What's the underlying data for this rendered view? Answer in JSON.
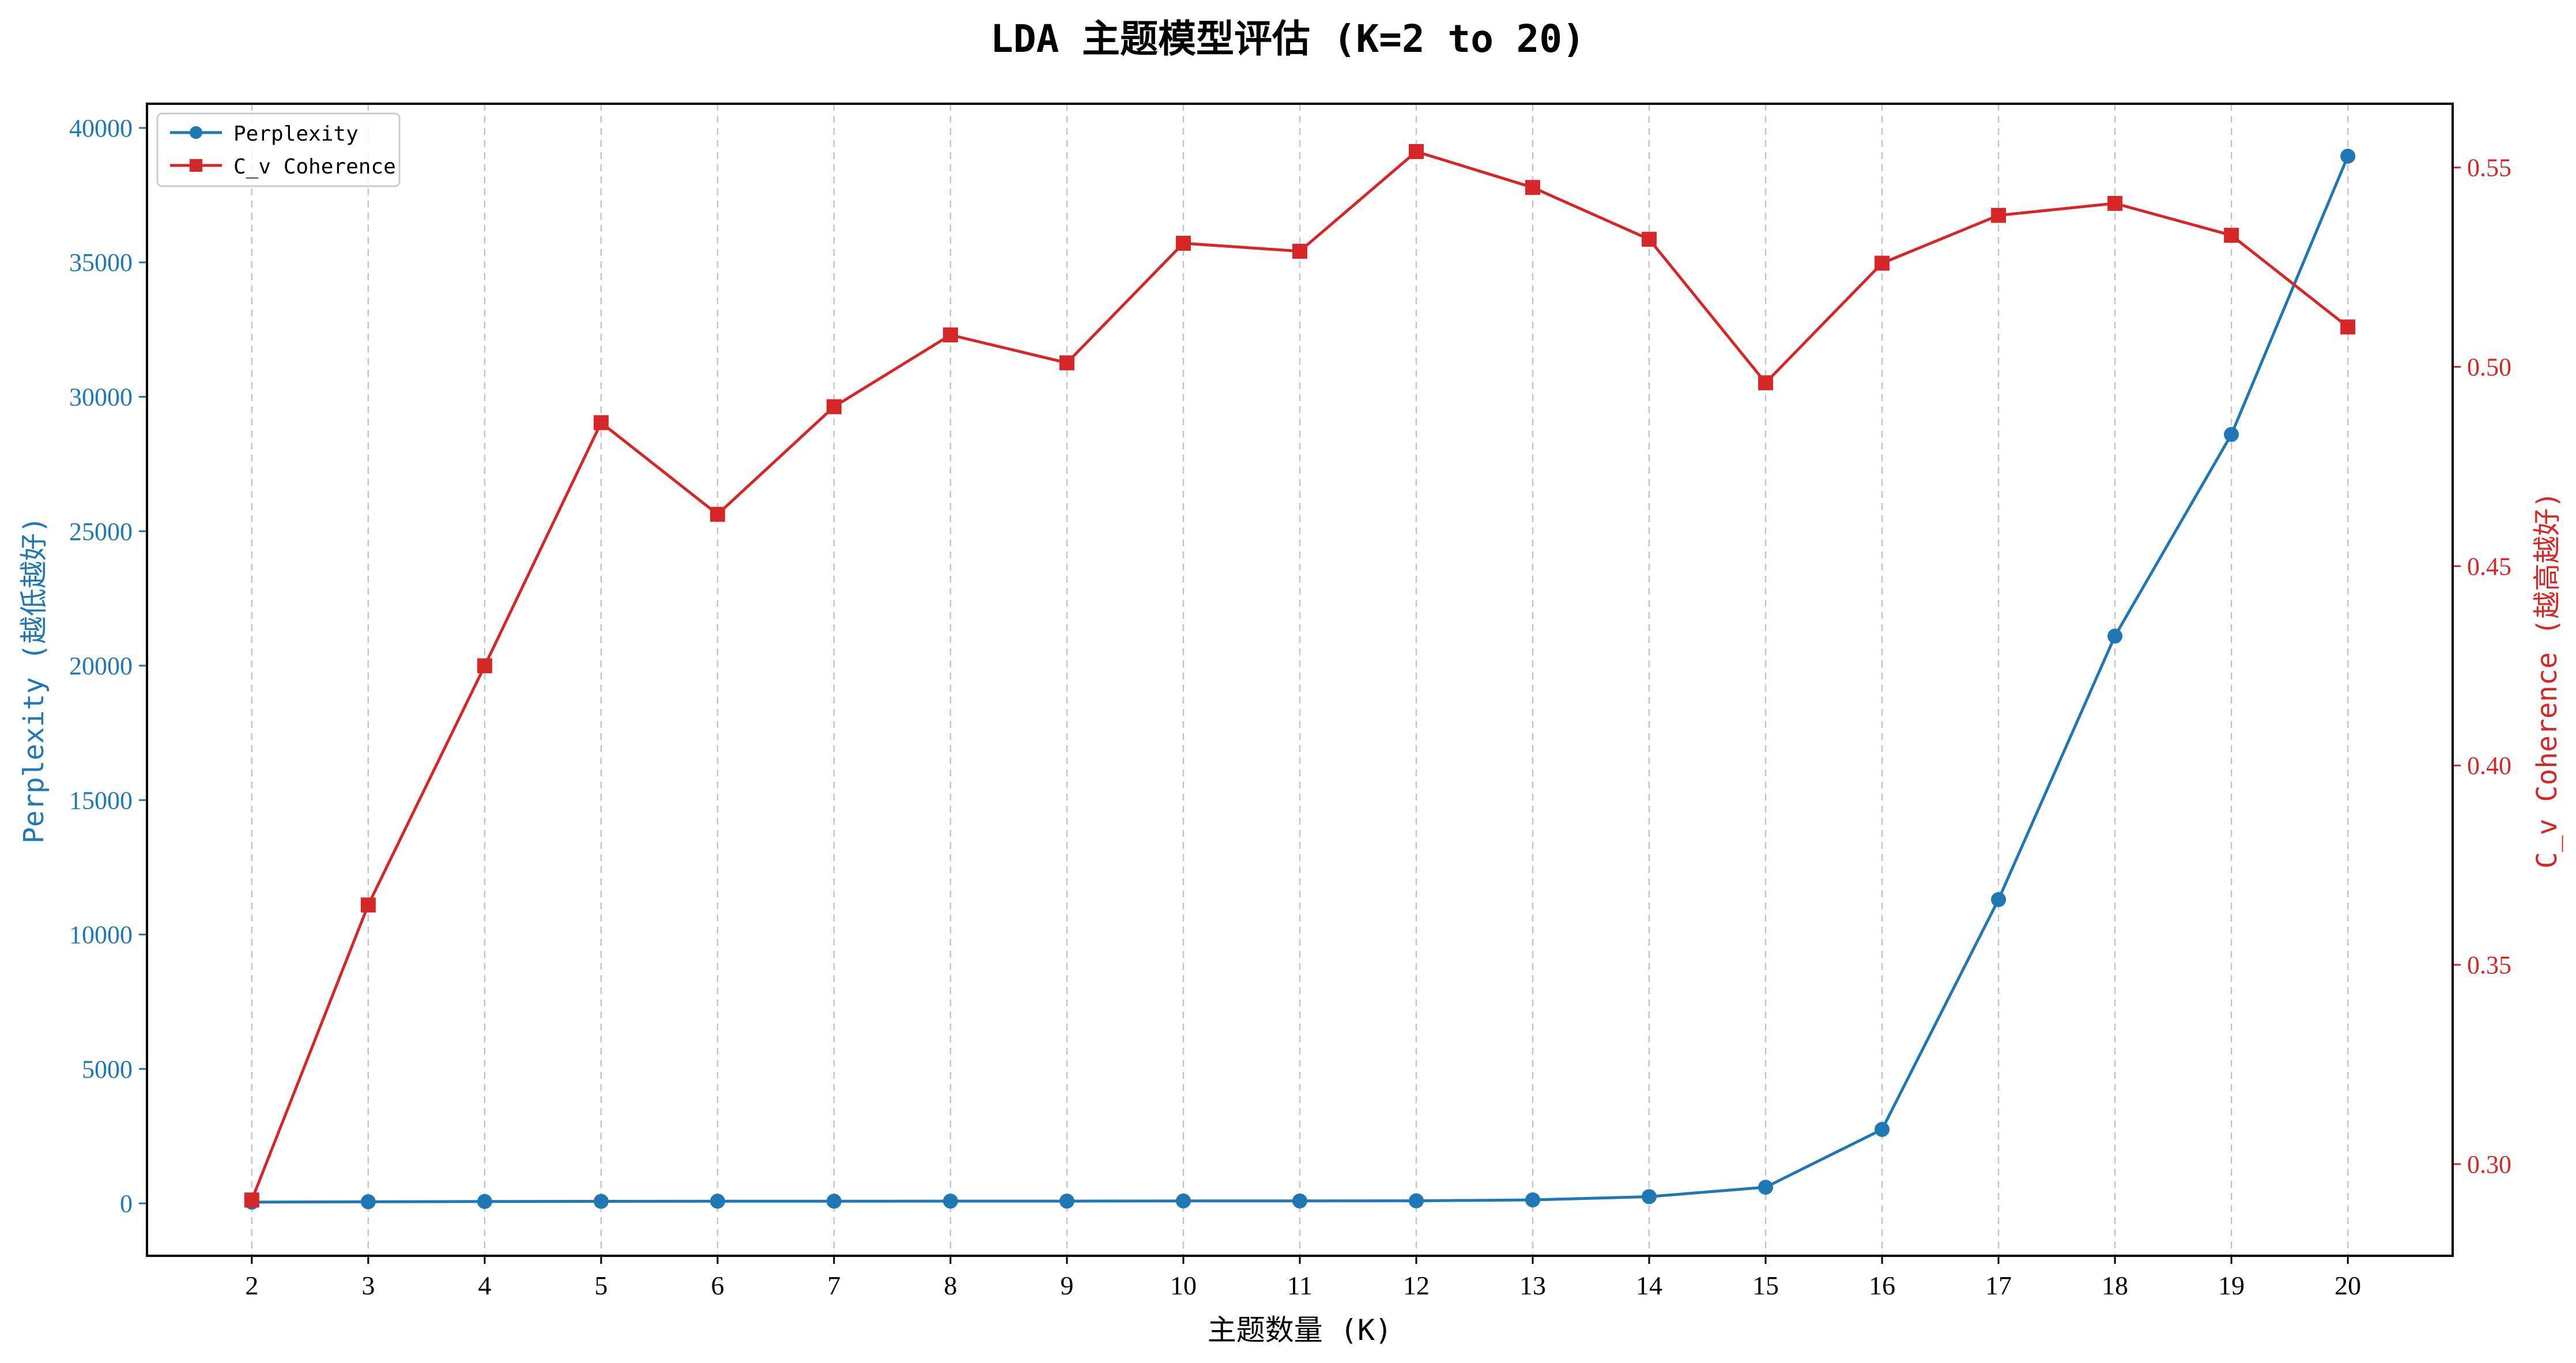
{
  "chart_data": {
    "type": "line",
    "title": "LDA 主题模型评估 (K=2 to 20)",
    "xlabel": "主题数量 (K)",
    "ylabel_left": "Perplexity (越低越好)",
    "ylabel_right": "C_v Coherence (越高越好)",
    "x": [
      2,
      3,
      4,
      5,
      6,
      7,
      8,
      9,
      10,
      11,
      12,
      13,
      14,
      15,
      16,
      17,
      18,
      19,
      20
    ],
    "xlim": [
      1.1,
      20.9
    ],
    "ylim_left": [
      -1950,
      40900
    ],
    "ylim_right": [
      0.277,
      0.566
    ],
    "yticks_left": [
      0,
      5000,
      10000,
      15000,
      20000,
      25000,
      30000,
      35000,
      40000
    ],
    "yticks_right": [
      "0.30",
      "0.35",
      "0.40",
      "0.45",
      "0.50",
      "0.55"
    ],
    "grid": "x-dashed",
    "legend_position": "top-left",
    "series": [
      {
        "name": "Perplexity",
        "axis": "left",
        "color": "#1f77b4",
        "marker": "circle",
        "values": [
          45,
          60,
          70,
          75,
          80,
          80,
          85,
          85,
          90,
          90,
          95,
          130,
          250,
          600,
          2750,
          11300,
          21100,
          28600,
          38950
        ]
      },
      {
        "name": "C_v Coherence",
        "axis": "right",
        "color": "#d62728",
        "marker": "square",
        "values": [
          0.291,
          0.365,
          0.425,
          0.486,
          0.463,
          0.49,
          0.508,
          0.501,
          0.531,
          0.529,
          0.554,
          0.545,
          0.532,
          0.496,
          0.526,
          0.538,
          0.541,
          0.533,
          0.51
        ]
      }
    ]
  }
}
